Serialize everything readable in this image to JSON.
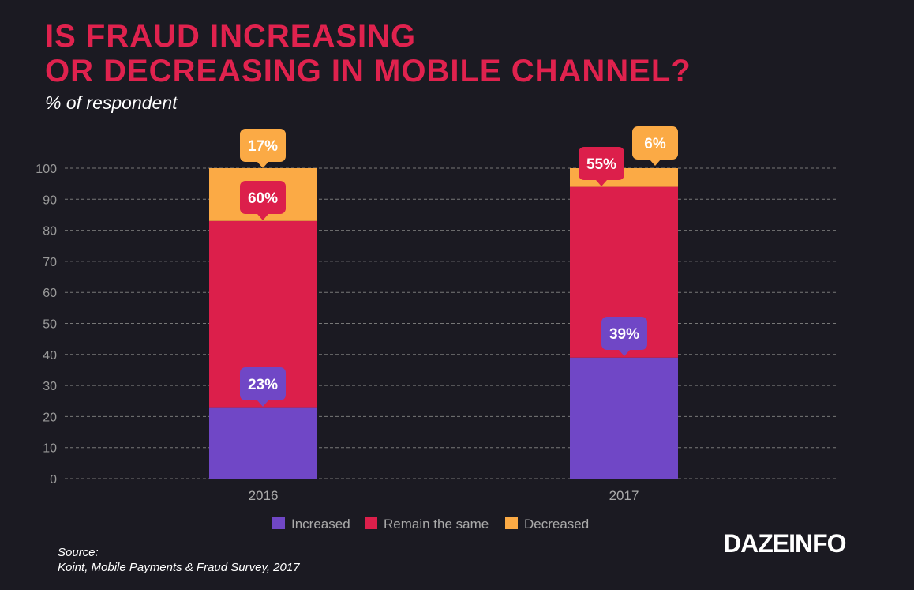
{
  "title_lines": [
    "IS FRAUD INCREASING",
    "OR DECREASING IN MOBILE CHANNEL?"
  ],
  "subtitle": "% of respondent",
  "source_lines": [
    "Source:",
    "Koint, Mobile Payments & Fraud Survey, 2017"
  ],
  "logo": "DAZEINFO",
  "chart_data": {
    "type": "bar",
    "stacked": true,
    "categories": [
      "2016",
      "2017"
    ],
    "series": [
      {
        "name": "Increased",
        "values": [
          23,
          39
        ],
        "labels": [
          "23%",
          "39%"
        ],
        "color": "#7047c6"
      },
      {
        "name": "Remain the same",
        "values": [
          60,
          55
        ],
        "labels": [
          "60%",
          "55%"
        ],
        "color": "#dc1f4b"
      },
      {
        "name": "Decreased",
        "values": [
          17,
          6
        ],
        "labels": [
          "17%",
          "6%"
        ],
        "color": "#fbaa45"
      }
    ],
    "ylim": [
      0,
      100
    ],
    "yticks": [
      0,
      10,
      20,
      30,
      40,
      50,
      60,
      70,
      80,
      90,
      100
    ],
    "grid": true,
    "legend": "bottom",
    "background": "#1b1a22",
    "title_color": "#e0224e"
  }
}
